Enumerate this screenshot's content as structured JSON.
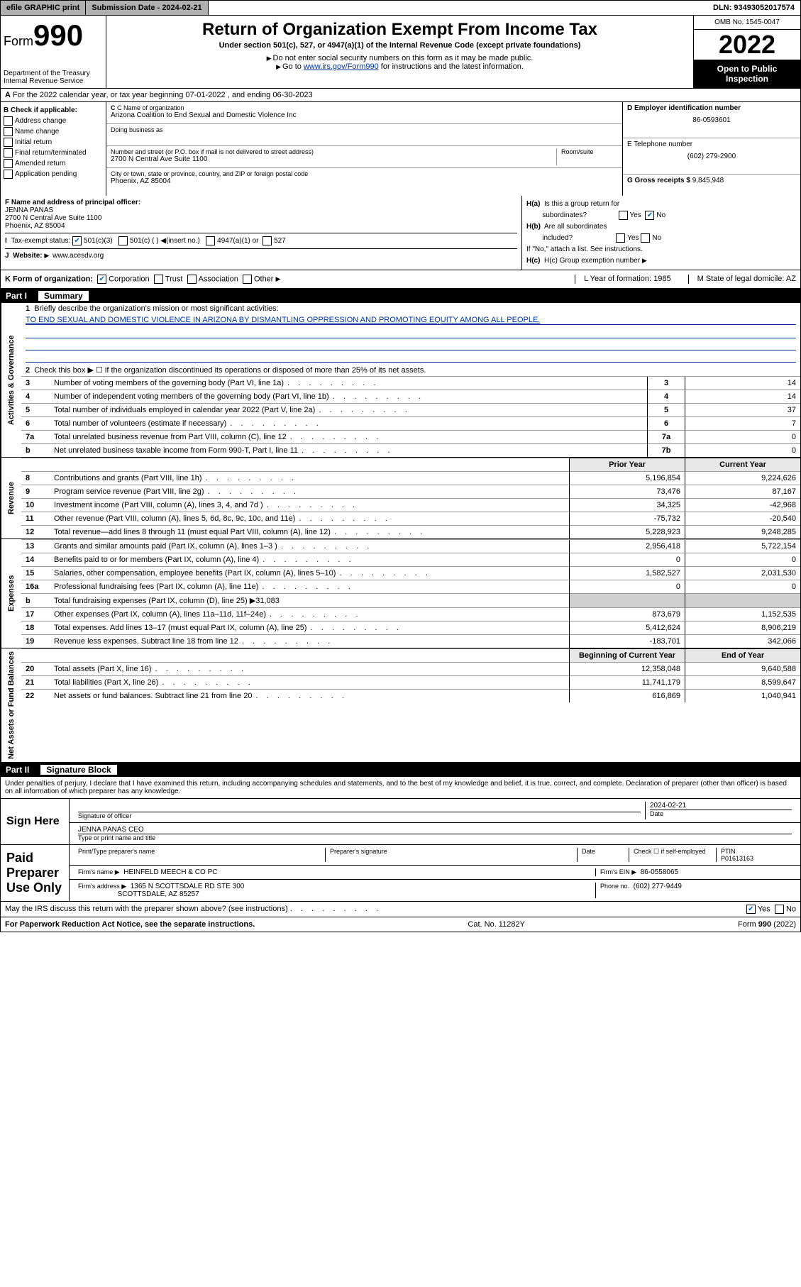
{
  "topbar": {
    "efile": "efile GRAPHIC print",
    "submission_label": "Submission Date - 2024-02-21",
    "dln": "DLN: 93493052017574"
  },
  "header": {
    "form_prefix": "Form",
    "form_number": "990",
    "dept": "Department of the Treasury",
    "irs": "Internal Revenue Service",
    "title": "Return of Organization Exempt From Income Tax",
    "subtitle": "Under section 501(c), 527, or 4947(a)(1) of the Internal Revenue Code (except private foundations)",
    "note1": "Do not enter social security numbers on this form as it may be made public.",
    "note2_pre": "Go to ",
    "note2_link": "www.irs.gov/Form990",
    "note2_post": " for instructions and the latest information.",
    "omb": "OMB No. 1545-0047",
    "year": "2022",
    "inspect": "Open to Public Inspection"
  },
  "rowA": "For the 2022 calendar year, or tax year beginning 07-01-2022  , and ending 06-30-2023",
  "boxB": {
    "label": "B Check if applicable:",
    "opts": [
      "Address change",
      "Name change",
      "Initial return",
      "Final return/terminated",
      "Amended return",
      "Application pending"
    ]
  },
  "boxC": {
    "name_label": "C Name of organization",
    "name": "Arizona Coalition to End Sexual and Domestic Violence Inc",
    "dba_label": "Doing business as",
    "dba": "",
    "street_label": "Number and street (or P.O. box if mail is not delivered to street address)",
    "street": "2700 N Central Ave Suite 1100",
    "room_label": "Room/suite",
    "city_label": "City or town, state or province, country, and ZIP or foreign postal code",
    "city": "Phoenix, AZ  85004"
  },
  "boxD": {
    "label": "D Employer identification number",
    "ein": "86-0593601"
  },
  "boxE": {
    "label": "E Telephone number",
    "phone": "(602) 279-2900"
  },
  "boxG": {
    "label": "G Gross receipts $",
    "amount": "9,845,948"
  },
  "boxF": {
    "label": "F Name and address of principal officer:",
    "name": "JENNA PANAS",
    "addr1": "2700 N Central Ave Suite 1100",
    "addr2": "Phoenix, AZ  85004"
  },
  "boxH": {
    "a_label": "H(a)  Is this a group return for subordinates?",
    "a_yes": "Yes",
    "a_no": "No",
    "b_label": "H(b)  Are all subordinates included?",
    "b_note": "If \"No,\" attach a list. See instructions.",
    "c_label": "H(c)  Group exemption number"
  },
  "rowI": {
    "label": "Tax-exempt status:",
    "o1": "501(c)(3)",
    "o2": "501(c) (  ) ◀(insert no.)",
    "o3": "4947(a)(1) or",
    "o4": "527"
  },
  "rowJ": {
    "label": "Website:",
    "value": "www.acesdv.org"
  },
  "rowK": {
    "label": "K Form of organization:",
    "o1": "Corporation",
    "o2": "Trust",
    "o3": "Association",
    "o4": "Other",
    "L": "L Year of formation: 1985",
    "M": "M State of legal domicile: AZ"
  },
  "part1": {
    "header_no": "Part I",
    "header_title": "Summary",
    "line1_label": "Briefly describe the organization's mission or most significant activities:",
    "line1_text": "TO END SEXUAL AND DOMESTIC VIOLENCE IN ARIZONA BY DISMANTLING OPPRESSION AND PROMOTING EQUITY AMONG ALL PEOPLE.",
    "line2": "Check this box ▶ ☐  if the organization discontinued its operations or disposed of more than 25% of its net assets.",
    "sections": {
      "governance": "Activities & Governance",
      "revenue": "Revenue",
      "expenses": "Expenses",
      "netassets": "Net Assets or Fund Balances"
    },
    "gov_lines": [
      {
        "n": "3",
        "d": "Number of voting members of the governing body (Part VI, line 1a)",
        "box": "3",
        "v": "14"
      },
      {
        "n": "4",
        "d": "Number of independent voting members of the governing body (Part VI, line 1b)",
        "box": "4",
        "v": "14"
      },
      {
        "n": "5",
        "d": "Total number of individuals employed in calendar year 2022 (Part V, line 2a)",
        "box": "5",
        "v": "37"
      },
      {
        "n": "6",
        "d": "Total number of volunteers (estimate if necessary)",
        "box": "6",
        "v": "7"
      },
      {
        "n": "7a",
        "d": "Total unrelated business revenue from Part VIII, column (C), line 12",
        "box": "7a",
        "v": "0"
      },
      {
        "n": "b",
        "d": "Net unrelated business taxable income from Form 990-T, Part I, line 11",
        "box": "7b",
        "v": "0"
      }
    ],
    "col_hdr_prior": "Prior Year",
    "col_hdr_current": "Current Year",
    "rev_lines": [
      {
        "n": "8",
        "d": "Contributions and grants (Part VIII, line 1h)",
        "p": "5,196,854",
        "c": "9,224,626"
      },
      {
        "n": "9",
        "d": "Program service revenue (Part VIII, line 2g)",
        "p": "73,476",
        "c": "87,167"
      },
      {
        "n": "10",
        "d": "Investment income (Part VIII, column (A), lines 3, 4, and 7d )",
        "p": "34,325",
        "c": "-42,968"
      },
      {
        "n": "11",
        "d": "Other revenue (Part VIII, column (A), lines 5, 6d, 8c, 9c, 10c, and 11e)",
        "p": "-75,732",
        "c": "-20,540"
      },
      {
        "n": "12",
        "d": "Total revenue—add lines 8 through 11 (must equal Part VIII, column (A), line 12)",
        "p": "5,228,923",
        "c": "9,248,285"
      }
    ],
    "exp_lines": [
      {
        "n": "13",
        "d": "Grants and similar amounts paid (Part IX, column (A), lines 1–3 )",
        "p": "2,956,418",
        "c": "5,722,154"
      },
      {
        "n": "14",
        "d": "Benefits paid to or for members (Part IX, column (A), line 4)",
        "p": "0",
        "c": "0"
      },
      {
        "n": "15",
        "d": "Salaries, other compensation, employee benefits (Part IX, column (A), lines 5–10)",
        "p": "1,582,527",
        "c": "2,031,530"
      },
      {
        "n": "16a",
        "d": "Professional fundraising fees (Part IX, column (A), line 11e)",
        "p": "0",
        "c": "0"
      },
      {
        "n": "b",
        "d": "Total fundraising expenses (Part IX, column (D), line 25) ▶31,083",
        "p": "",
        "c": "",
        "shade": true
      },
      {
        "n": "17",
        "d": "Other expenses (Part IX, column (A), lines 11a–11d, 11f–24e)",
        "p": "873,679",
        "c": "1,152,535"
      },
      {
        "n": "18",
        "d": "Total expenses. Add lines 13–17 (must equal Part IX, column (A), line 25)",
        "p": "5,412,624",
        "c": "8,906,219"
      },
      {
        "n": "19",
        "d": "Revenue less expenses. Subtract line 18 from line 12",
        "p": "-183,701",
        "c": "342,066"
      }
    ],
    "na_hdr_begin": "Beginning of Current Year",
    "na_hdr_end": "End of Year",
    "na_lines": [
      {
        "n": "20",
        "d": "Total assets (Part X, line 16)",
        "p": "12,358,048",
        "c": "9,640,588"
      },
      {
        "n": "21",
        "d": "Total liabilities (Part X, line 26)",
        "p": "11,741,179",
        "c": "8,599,647"
      },
      {
        "n": "22",
        "d": "Net assets or fund balances. Subtract line 21 from line 20",
        "p": "616,869",
        "c": "1,040,941"
      }
    ]
  },
  "part2": {
    "header_no": "Part II",
    "header_title": "Signature Block",
    "penalty": "Under penalties of perjury, I declare that I have examined this return, including accompanying schedules and statements, and to the best of my knowledge and belief, it is true, correct, and complete. Declaration of preparer (other than officer) is based on all information of which preparer has any knowledge.",
    "sign_here": "Sign Here",
    "sig_officer": "Signature of officer",
    "sig_date_label": "Date",
    "sig_date": "2024-02-21",
    "sig_name": "JENNA PANAS CEO",
    "sig_name_label": "Type or print name and title",
    "paid": "Paid Preparer Use Only",
    "prep_name_label": "Print/Type preparer's name",
    "prep_sig_label": "Preparer's signature",
    "date_label": "Date",
    "check_self": "Check ☐ if self-employed",
    "ptin_label": "PTIN",
    "ptin": "P01613163",
    "firm_name_label": "Firm's name ▶",
    "firm_name": "HEINFELD MEECH & CO PC",
    "firm_ein_label": "Firm's EIN ▶",
    "firm_ein": "86-0558065",
    "firm_addr_label": "Firm's address ▶",
    "firm_addr1": "1365 N SCOTTSDALE RD STE 300",
    "firm_addr2": "SCOTTSDALE, AZ  85257",
    "firm_phone_label": "Phone no.",
    "firm_phone": "(602) 277-9449",
    "discuss": "May the IRS discuss this return with the preparer shown above? (see instructions)",
    "discuss_yes": "Yes",
    "discuss_no": "No"
  },
  "footer": {
    "paperwork": "For Paperwork Reduction Act Notice, see the separate instructions.",
    "cat": "Cat. No. 11282Y",
    "form": "Form 990 (2022)"
  }
}
